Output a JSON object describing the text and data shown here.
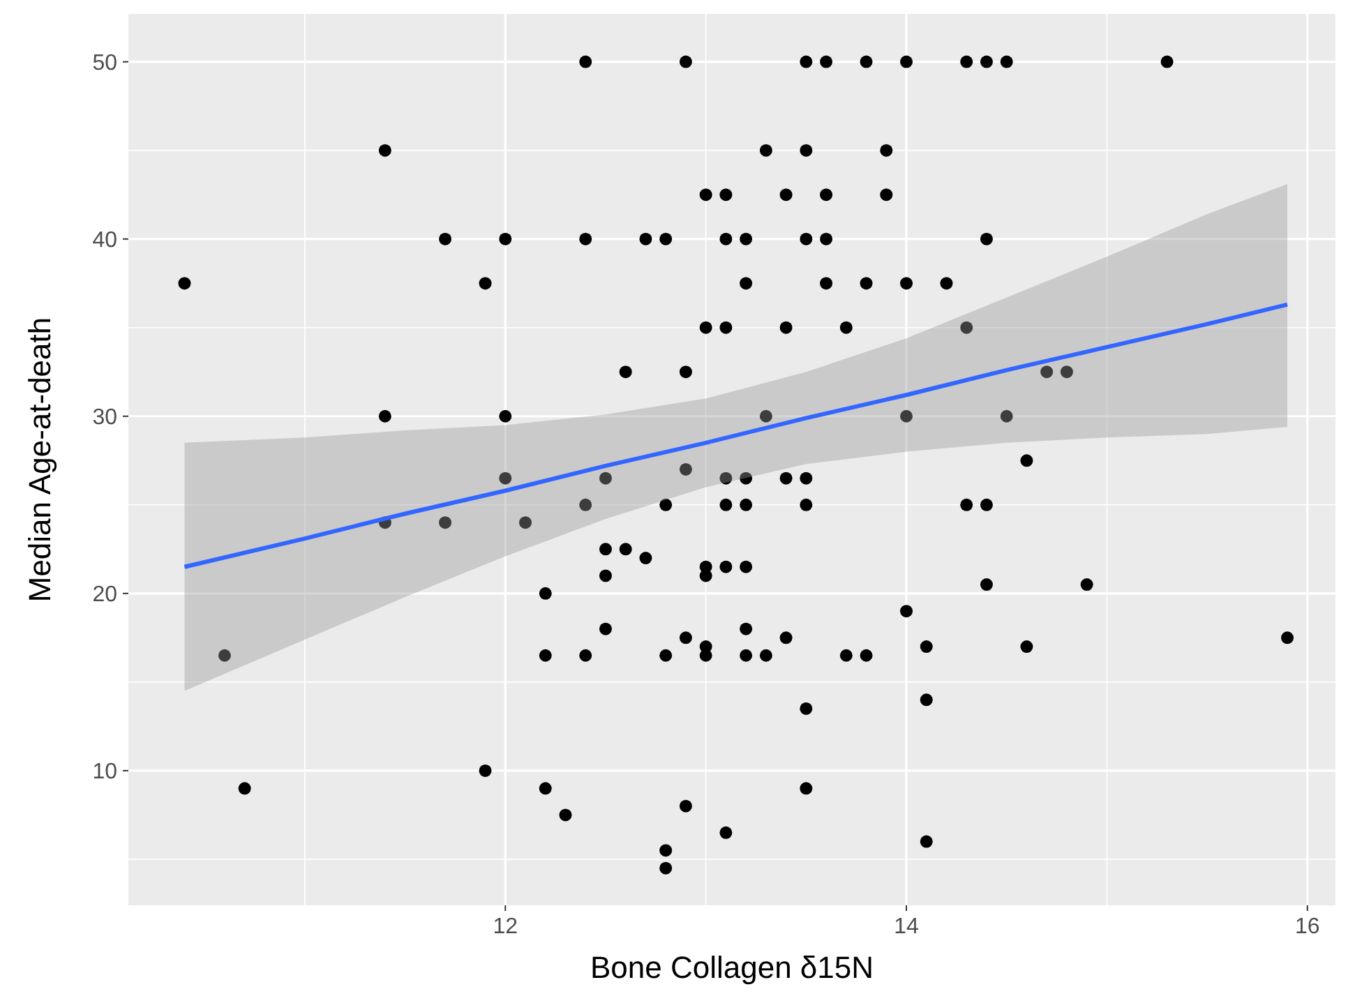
{
  "chart_data": {
    "type": "scatter",
    "xlabel": "Bone Collagen δ15N",
    "ylabel": "Median Age-at-death",
    "xlim": [
      10.12,
      16.14
    ],
    "ylim": [
      2.4,
      52.7
    ],
    "xticks": [
      12,
      14,
      16
    ],
    "yticks": [
      10,
      20,
      30,
      40,
      50
    ],
    "grid": true,
    "series": [
      {
        "color": "#000000",
        "marker": "circle",
        "x": [
          12.4,
          12.9,
          13.5,
          13.6,
          13.8,
          14.0,
          14.3,
          14.4,
          14.5,
          15.3,
          11.4,
          13.3,
          13.5,
          13.9,
          13.0,
          13.1,
          13.4,
          13.6,
          13.9,
          11.7,
          12.0,
          12.4,
          12.7,
          12.8,
          13.1,
          13.2,
          13.5,
          13.6,
          14.4,
          10.4,
          11.9,
          13.2,
          13.6,
          13.8,
          14.0,
          14.2,
          13.0,
          13.1,
          13.4,
          13.7,
          14.3,
          12.6,
          12.9,
          14.7,
          14.8,
          11.4,
          12.0,
          13.3,
          14.0,
          14.5,
          14.6,
          12.9,
          12.0,
          12.5,
          13.1,
          13.2,
          13.4,
          13.5,
          12.4,
          12.8,
          13.1,
          13.2,
          13.5,
          14.3,
          14.4,
          11.4,
          11.7,
          12.1,
          12.5,
          12.6,
          12.7,
          13.0,
          13.1,
          13.2,
          12.5,
          13.0,
          14.4,
          14.9,
          12.2,
          14.0,
          12.5,
          13.2,
          12.9,
          13.4,
          15.9,
          13.0,
          14.1,
          14.6,
          10.6,
          12.2,
          12.4,
          12.8,
          13.0,
          13.2,
          13.3,
          13.7,
          13.8,
          14.1,
          13.5,
          11.9,
          10.7,
          12.2,
          13.5,
          12.9,
          12.3,
          13.1,
          14.1,
          12.8,
          12.8
        ],
        "values": [
          50,
          50,
          50,
          50,
          50,
          50,
          50,
          50,
          50,
          50,
          45,
          45,
          45,
          45,
          42.5,
          42.5,
          42.5,
          42.5,
          42.5,
          40,
          40,
          40,
          40,
          40,
          40,
          40,
          40,
          40,
          40,
          37.5,
          37.5,
          37.5,
          37.5,
          37.5,
          37.5,
          37.5,
          35,
          35,
          35,
          35,
          35,
          32.5,
          32.5,
          32.5,
          32.5,
          30,
          30,
          30,
          30,
          30,
          27.5,
          27,
          26.5,
          26.5,
          26.5,
          26.5,
          26.5,
          26.5,
          25,
          25,
          25,
          25,
          25,
          25,
          25,
          24,
          24,
          24,
          22.5,
          22.5,
          22,
          21.5,
          21.5,
          21.5,
          21,
          21,
          20.5,
          20.5,
          20,
          19,
          18,
          18,
          17.5,
          17.5,
          17.5,
          17,
          17,
          17,
          16.5,
          16.5,
          16.5,
          16.5,
          16.5,
          16.5,
          16.5,
          16.5,
          16.5,
          14,
          13.5,
          10,
          9,
          9,
          9,
          8,
          7.5,
          6.5,
          6,
          5.5,
          4.5
        ]
      },
      {
        "type": "line",
        "marker": "none",
        "color": "#3366ff",
        "x": [
          10.4,
          11,
          11.5,
          12,
          12.5,
          13,
          13.5,
          14,
          14.5,
          15,
          15.5,
          15.9
        ],
        "values": [
          21.5,
          23.1,
          24.5,
          25.8,
          27.2,
          28.5,
          29.9,
          31.2,
          32.6,
          33.9,
          35.2,
          36.3
        ],
        "lower": [
          14.5,
          17.4,
          19.8,
          22.1,
          24.2,
          26.0,
          27.3,
          28.0,
          28.5,
          28.8,
          29.0,
          29.4
        ],
        "upper": [
          28.5,
          28.8,
          29.2,
          29.5,
          30.1,
          31.0,
          32.5,
          34.4,
          36.7,
          39.0,
          41.4,
          43.1
        ]
      }
    ]
  }
}
